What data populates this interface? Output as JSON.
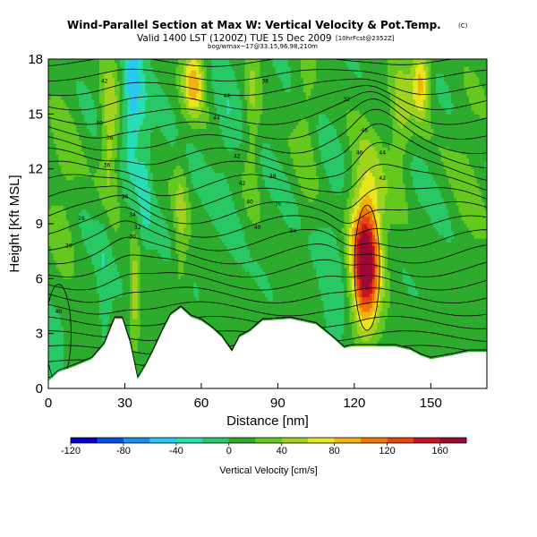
{
  "chart_data": {
    "type": "heatmap",
    "title": "Wind-Parallel Section at Max W: Vertical Velocity & Pot.Temp.",
    "title_mark": "(C)",
    "subtitle": "Valid 1400 LST (1200Z) TUE 15 Dec 2009",
    "subtitle_note": "[10hrFcst@2352Z]",
    "subtitle2": "bog/wmax~17@33.15,96.98,210m",
    "xlabel": "Distance [nm]",
    "ylabel": "Height [Kft MSL]",
    "xlim": [
      0,
      172
    ],
    "ylim": [
      0,
      18
    ],
    "x_ticks": [
      "0",
      "30",
      "60",
      "90",
      "120",
      "150"
    ],
    "y_ticks": [
      "0",
      "3",
      "6",
      "9",
      "12",
      "15",
      "18"
    ],
    "colorbar": {
      "label": "Vertical Velocity [cm/s]",
      "ticks": [
        "-120",
        "-80",
        "-40",
        "0",
        "40",
        "80",
        "120",
        "160"
      ],
      "range": [
        -120,
        180
      ],
      "levels": [
        -120,
        -100,
        -80,
        -60,
        -40,
        -20,
        0,
        20,
        40,
        60,
        80,
        100,
        120,
        140,
        160,
        180
      ],
      "colors": [
        "#0000c8",
        "#0050e6",
        "#1e8cf0",
        "#28c8f0",
        "#28dcb4",
        "#28c864",
        "#2dab2d",
        "#64c81e",
        "#a0d21e",
        "#e6e61e",
        "#f0b40a",
        "#f07800",
        "#e64614",
        "#c8141e",
        "#9b0a32"
      ]
    },
    "terrain": [
      [
        0,
        0.4
      ],
      [
        4,
        0.9
      ],
      [
        10,
        1.2
      ],
      [
        17,
        1.6
      ],
      [
        22,
        2.4
      ],
      [
        26,
        3.8
      ],
      [
        29,
        3.8
      ],
      [
        32,
        2.5
      ],
      [
        35,
        0.5
      ],
      [
        38,
        1.2
      ],
      [
        41,
        2.0
      ],
      [
        45,
        3.2
      ],
      [
        48,
        4.0
      ],
      [
        52,
        4.4
      ],
      [
        56,
        3.9
      ],
      [
        60,
        3.7
      ],
      [
        64,
        3.3
      ],
      [
        68,
        2.8
      ],
      [
        72,
        2.0
      ],
      [
        75,
        2.8
      ],
      [
        79,
        3.1
      ],
      [
        84,
        3.7
      ],
      [
        95,
        3.8
      ],
      [
        105,
        3.5
      ],
      [
        112,
        2.7
      ],
      [
        116,
        2.2
      ],
      [
        119,
        2.3
      ],
      [
        128,
        2.3
      ],
      [
        136,
        2.3
      ],
      [
        142,
        2.1
      ],
      [
        146,
        1.8
      ],
      [
        150,
        1.6
      ],
      [
        158,
        1.8
      ],
      [
        165,
        2.0
      ],
      [
        172,
        2.0
      ]
    ],
    "w_features": [
      {
        "type": "updraft",
        "x": 124,
        "z": 7.0,
        "peak": 150
      },
      {
        "type": "updraft",
        "x": 58,
        "z": 16.0,
        "peak": 90
      },
      {
        "type": "updraft",
        "x": 145,
        "z": 16.0,
        "peak": 80
      },
      {
        "type": "downdraft",
        "x": 33,
        "z": 16.5,
        "peak": -40
      }
    ],
    "theta_contour_labels": [
      "42",
      "40",
      "38",
      "36",
      "36",
      "34",
      "32",
      "30",
      "28",
      "26",
      "44",
      "44",
      "42",
      "42",
      "40",
      "40",
      "38",
      "38",
      "36",
      "34",
      "32",
      "46",
      "46",
      "44",
      "42",
      "40"
    ]
  }
}
